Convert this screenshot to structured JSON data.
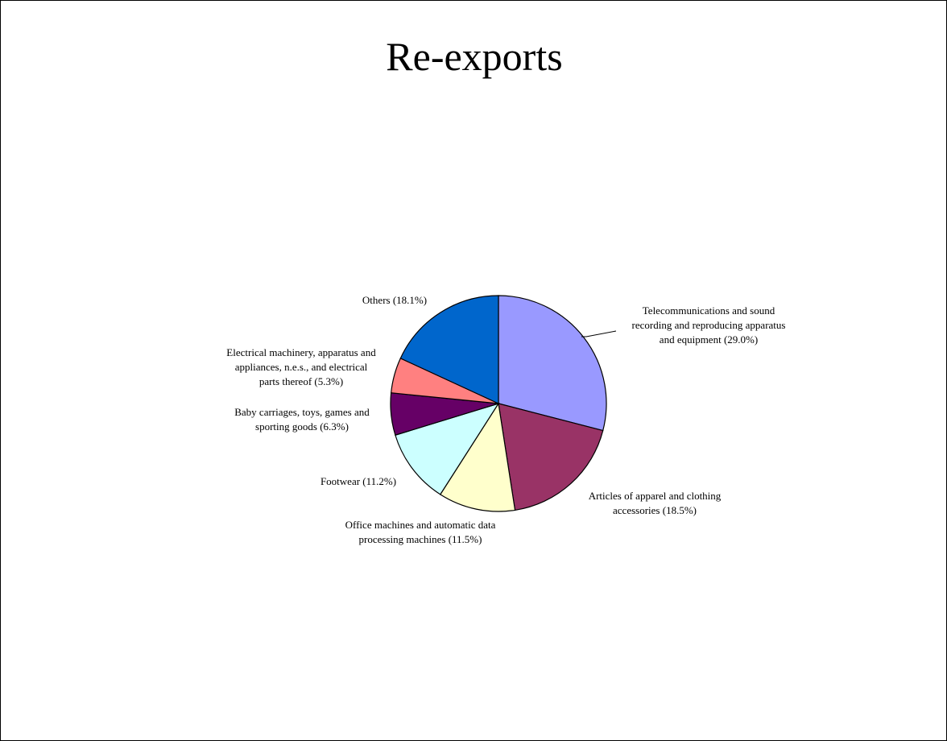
{
  "chart_data": {
    "type": "pie",
    "title": "Re-exports",
    "slices": [
      {
        "lines": [
          "Telecommunications and sound",
          "recording and reproducing apparatus",
          "and equipment (29.0%)"
        ],
        "value": 29.0,
        "color": "#9999ff"
      },
      {
        "lines": [
          "Articles of apparel and clothing",
          "accessories (18.5%)"
        ],
        "value": 18.5,
        "color": "#993366"
      },
      {
        "lines": [
          "Office machines and automatic data",
          "processing machines (11.5%)"
        ],
        "value": 11.5,
        "color": "#ffffcc"
      },
      {
        "lines": [
          "Footwear (11.2%)"
        ],
        "value": 11.2,
        "color": "#ccffff"
      },
      {
        "lines": [
          "Baby carriages, toys, games and",
          "sporting goods (6.3%)"
        ],
        "value": 6.3,
        "color": "#660066"
      },
      {
        "lines": [
          "Electrical machinery, apparatus and",
          "appliances, n.e.s., and electrical",
          "parts thereof (5.3%)"
        ],
        "value": 5.3,
        "color": "#ff8080"
      },
      {
        "lines": [
          "Others (18.1%)"
        ],
        "value": 18.1,
        "color": "#0066cc"
      }
    ]
  }
}
